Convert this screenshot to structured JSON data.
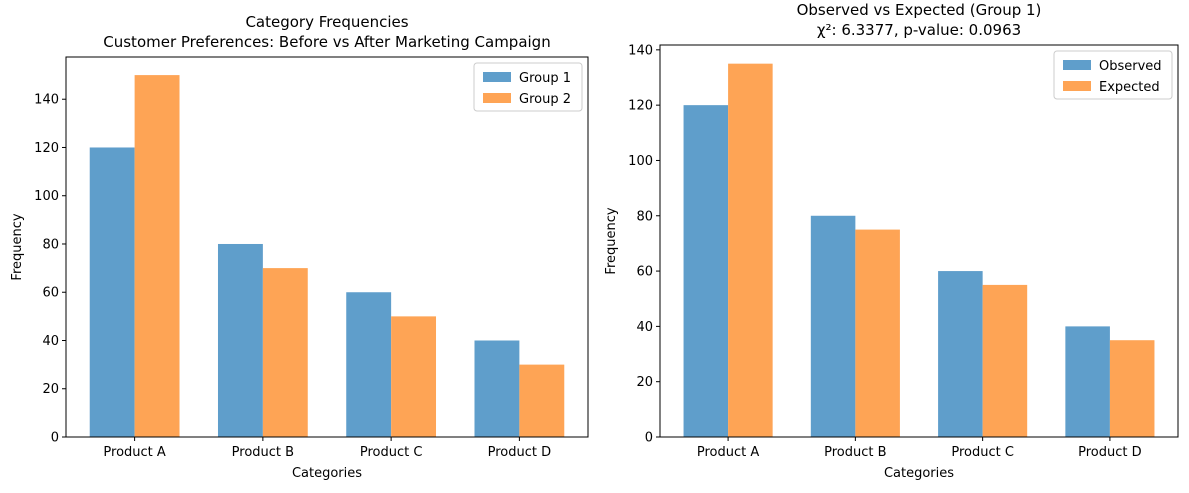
{
  "chart_data": [
    {
      "type": "bar",
      "title": "Category Frequencies",
      "subtitle": "Customer Preferences: Before vs After Marketing Campaign",
      "xlabel": "Categories",
      "ylabel": "Frequency",
      "categories": [
        "Product A",
        "Product B",
        "Product C",
        "Product D"
      ],
      "series": [
        {
          "name": "Group 1",
          "values": [
            120,
            80,
            60,
            40
          ],
          "color": "#5f9ecb"
        },
        {
          "name": "Group 2",
          "values": [
            150,
            70,
            50,
            30
          ],
          "color": "#fea455"
        }
      ],
      "ylim": [
        0,
        157.5
      ],
      "yticks": [
        0,
        20,
        40,
        60,
        80,
        100,
        120,
        140
      ],
      "grid": false,
      "legend": "top-right"
    },
    {
      "type": "bar",
      "title": "Observed vs Expected (Group 1)",
      "subtitle": "χ²: 6.3377, p-value: 0.0963",
      "xlabel": "Categories",
      "ylabel": "Frequency",
      "categories": [
        "Product A",
        "Product B",
        "Product C",
        "Product D"
      ],
      "series": [
        {
          "name": "Observed",
          "values": [
            120,
            80,
            60,
            40
          ],
          "color": "#5f9ecb"
        },
        {
          "name": "Expected",
          "values": [
            135,
            75,
            55,
            35
          ],
          "color": "#fea455"
        }
      ],
      "ylim": [
        0,
        141.75
      ],
      "yticks": [
        0,
        20,
        40,
        60,
        80,
        100,
        120,
        140
      ],
      "grid": false,
      "legend": "top-right"
    }
  ]
}
